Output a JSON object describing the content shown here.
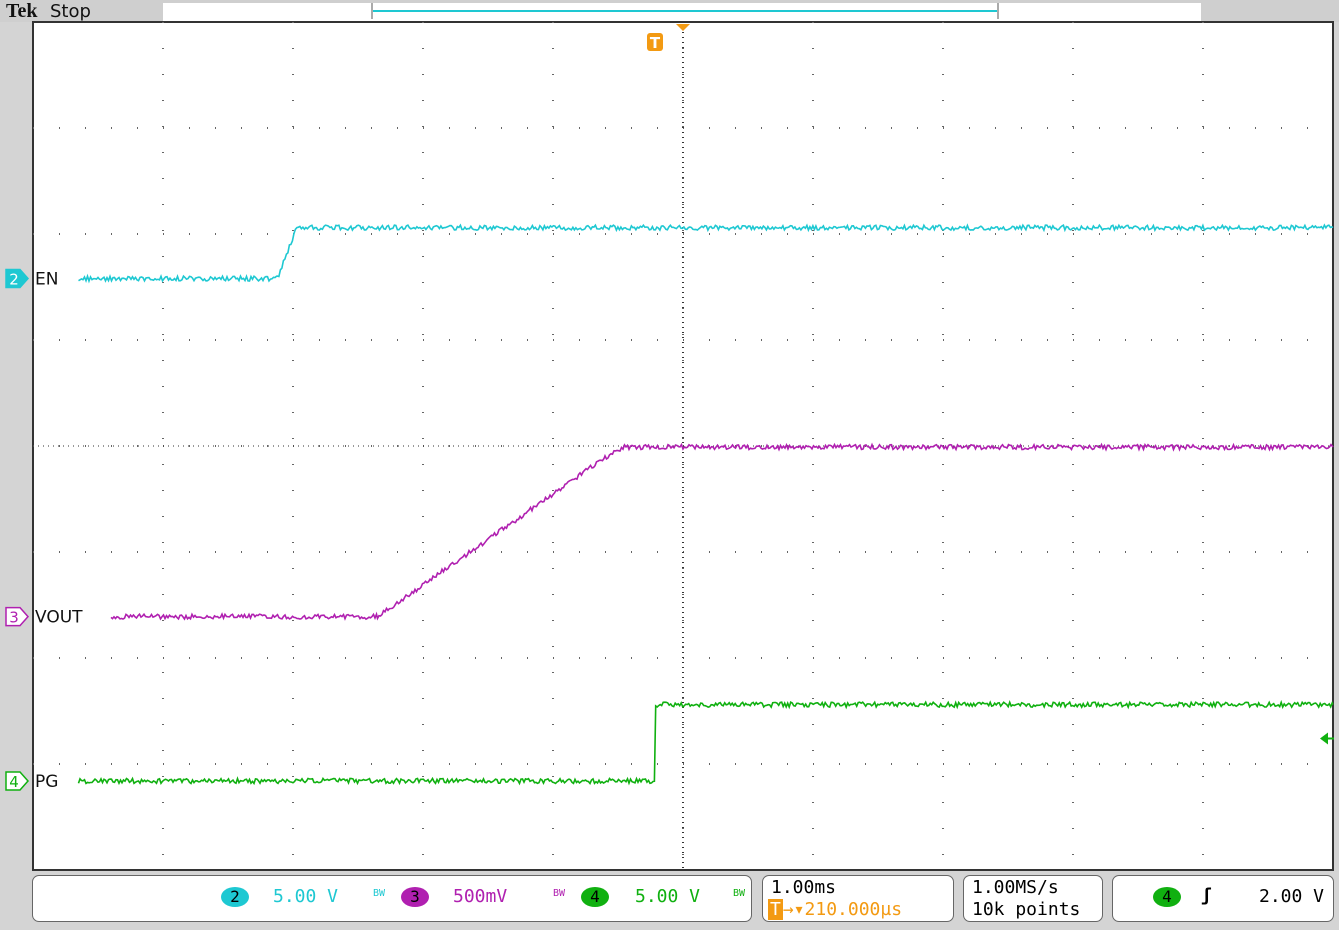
{
  "header": {
    "brand": "Tek",
    "status": "Stop"
  },
  "channels": [
    {
      "num": "2",
      "label": "EN",
      "scale": "5.00 V",
      "color": "#1ec8d2",
      "bw": "BW"
    },
    {
      "num": "3",
      "label": "VOUT",
      "scale": "500mV",
      "color": "#b020b0",
      "bw": "BW"
    },
    {
      "num": "4",
      "label": "PG",
      "scale": "5.00 V",
      "color": "#10b010",
      "bw": "BW"
    }
  ],
  "timebase": {
    "scale": "1.00ms",
    "trigger_position": "210.000µs"
  },
  "acquisition": {
    "rate": "1.00MS/s",
    "record": "10k points"
  },
  "trigger": {
    "source": "4",
    "slope": "rising",
    "level": "2.00 V",
    "marker": "T"
  },
  "chart_data": {
    "type": "line",
    "xlabel": "",
    "ylabel": "",
    "x_unit": "ms",
    "x_divisions": 10,
    "y_divisions": 8,
    "grid": true,
    "xlim": [
      -5,
      5
    ],
    "series": [
      {
        "name": "EN",
        "channel": "2",
        "volts_per_div": 5,
        "offset_div": 1.58,
        "x": [
          -4.65,
          -3.12,
          -2.97,
          5
        ],
        "y": [
          0,
          0,
          2.4,
          2.4
        ]
      },
      {
        "name": "VOUT",
        "channel": "3",
        "volts_per_div": 0.5,
        "offset_div": -1.61,
        "x": [
          -4.4,
          -2.35,
          -0.6,
          -0.45,
          5
        ],
        "y": [
          0,
          0,
          0.75,
          0.8,
          0.8
        ]
      },
      {
        "name": "PG",
        "channel": "4",
        "volts_per_div": 5,
        "offset_div": -3.16,
        "x": [
          -4.65,
          -0.22,
          -0.21,
          5
        ],
        "y": [
          0,
          0,
          3.6,
          3.6
        ]
      }
    ]
  }
}
